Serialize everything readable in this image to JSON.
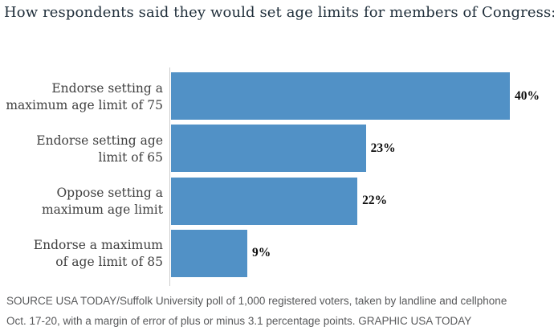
{
  "title": "How respondents said they would set age limits for members of Congress:",
  "chart_data": {
    "type": "bar",
    "orientation": "horizontal",
    "title": "How respondents said they would set age limits for members of Congress:",
    "categories": [
      "Endorse setting a maximum age limit of 75",
      "Endorse setting age limit of 65",
      "Oppose setting a maximum age limit",
      "Endorse a maximum of age limit of 85"
    ],
    "category_lines": [
      [
        "Endorse setting a",
        "maximum age limit of 75"
      ],
      [
        "Endorse setting age",
        "limit of 65"
      ],
      [
        "Oppose setting a",
        "maximum age limit"
      ],
      [
        "Endorse a maximum",
        "of age limit of 85"
      ]
    ],
    "values": [
      40,
      23,
      22,
      9
    ],
    "value_labels": [
      "40%",
      "23%",
      "22%",
      "9%"
    ],
    "xlim": [
      0,
      43
    ],
    "grid": false,
    "legend": false,
    "bar_color": "#5191c6",
    "axis_line_color": "#cccccc"
  },
  "footer": {
    "line1": "SOURCE USA TODAY/Suffolk University poll of 1,000 registered voters, taken by landline and cellphone",
    "line2": "Oct. 17-20, with a margin of error of plus or minus 3.1 percentage points. GRAPHIC USA TODAY"
  }
}
